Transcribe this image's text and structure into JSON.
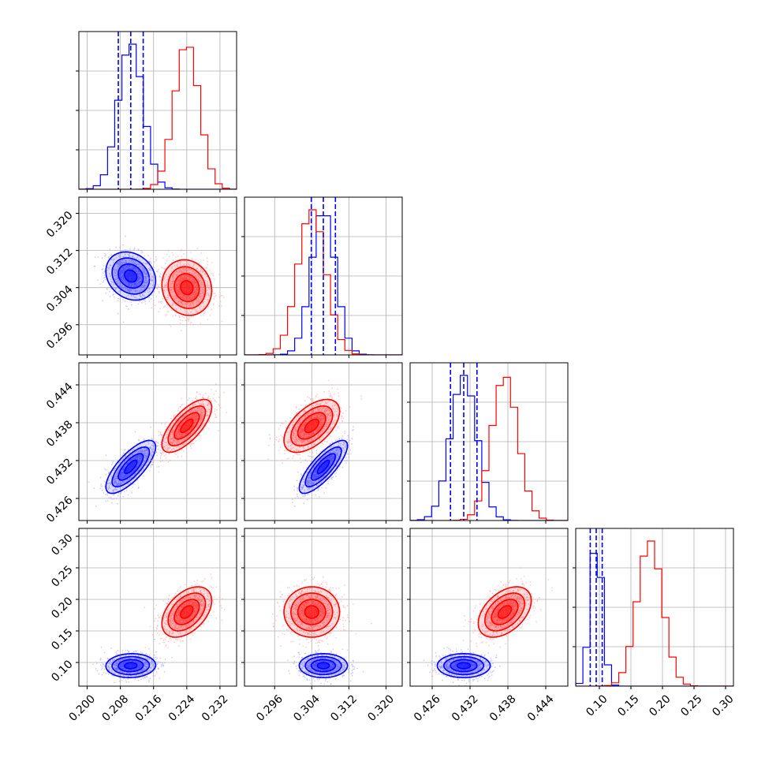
{
  "chart_data": {
    "type": "corner",
    "series": [
      {
        "name": "",
        "color": "#0000ff",
        "mean": [
          0.2105,
          0.3065,
          0.431,
          0.095
        ],
        "sd": [
          0.003,
          0.0026,
          0.0021,
          0.0095
        ],
        "corr": {
          "1,0": -0.2,
          "2,0": 0.75,
          "2,1": 0.8,
          "3,0": 0.05,
          "3,1": 0.0,
          "3,2": 0.0
        },
        "quantiles_shown": true
      },
      {
        "name": "",
        "color": "#ff0000",
        "mean": [
          0.224,
          0.304,
          0.4375,
          0.18
        ],
        "sd": [
          0.003,
          0.003,
          0.0021,
          0.02
        ],
        "corr": {
          "1,0": -0.1,
          "2,0": 0.7,
          "2,1": 0.55,
          "3,0": 0.45,
          "3,1": 0.0,
          "3,2": 0.45
        },
        "quantiles_shown": false
      }
    ],
    "parameters": [
      {
        "range": [
          0.198,
          0.236
        ],
        "ticks": [
          0.2,
          0.208,
          0.216,
          0.224,
          0.232
        ],
        "tick_labels": [
          "0.200",
          "0.208",
          "0.216",
          "0.224",
          "0.232"
        ]
      },
      {
        "range": [
          0.2895,
          0.3235
        ],
        "ticks": [
          0.296,
          0.304,
          0.312,
          0.32
        ],
        "tick_labels": [
          "0.296",
          "0.304",
          "0.312",
          "0.320"
        ]
      },
      {
        "range": [
          0.4225,
          0.4475
        ],
        "ticks": [
          0.426,
          0.432,
          0.438,
          0.444
        ],
        "tick_labels": [
          "0.426",
          "0.432",
          "0.438",
          "0.444"
        ]
      },
      {
        "range": [
          0.0625,
          0.3125
        ],
        "ticks": [
          0.1,
          0.15,
          0.2,
          0.25,
          0.3
        ],
        "tick_labels": [
          "0.10",
          "0.15",
          "0.20",
          "0.25",
          "0.30"
        ]
      }
    ],
    "grid": true,
    "contour_levels_sigma": [
      0.5,
      1.0,
      1.5,
      2.0
    ]
  }
}
